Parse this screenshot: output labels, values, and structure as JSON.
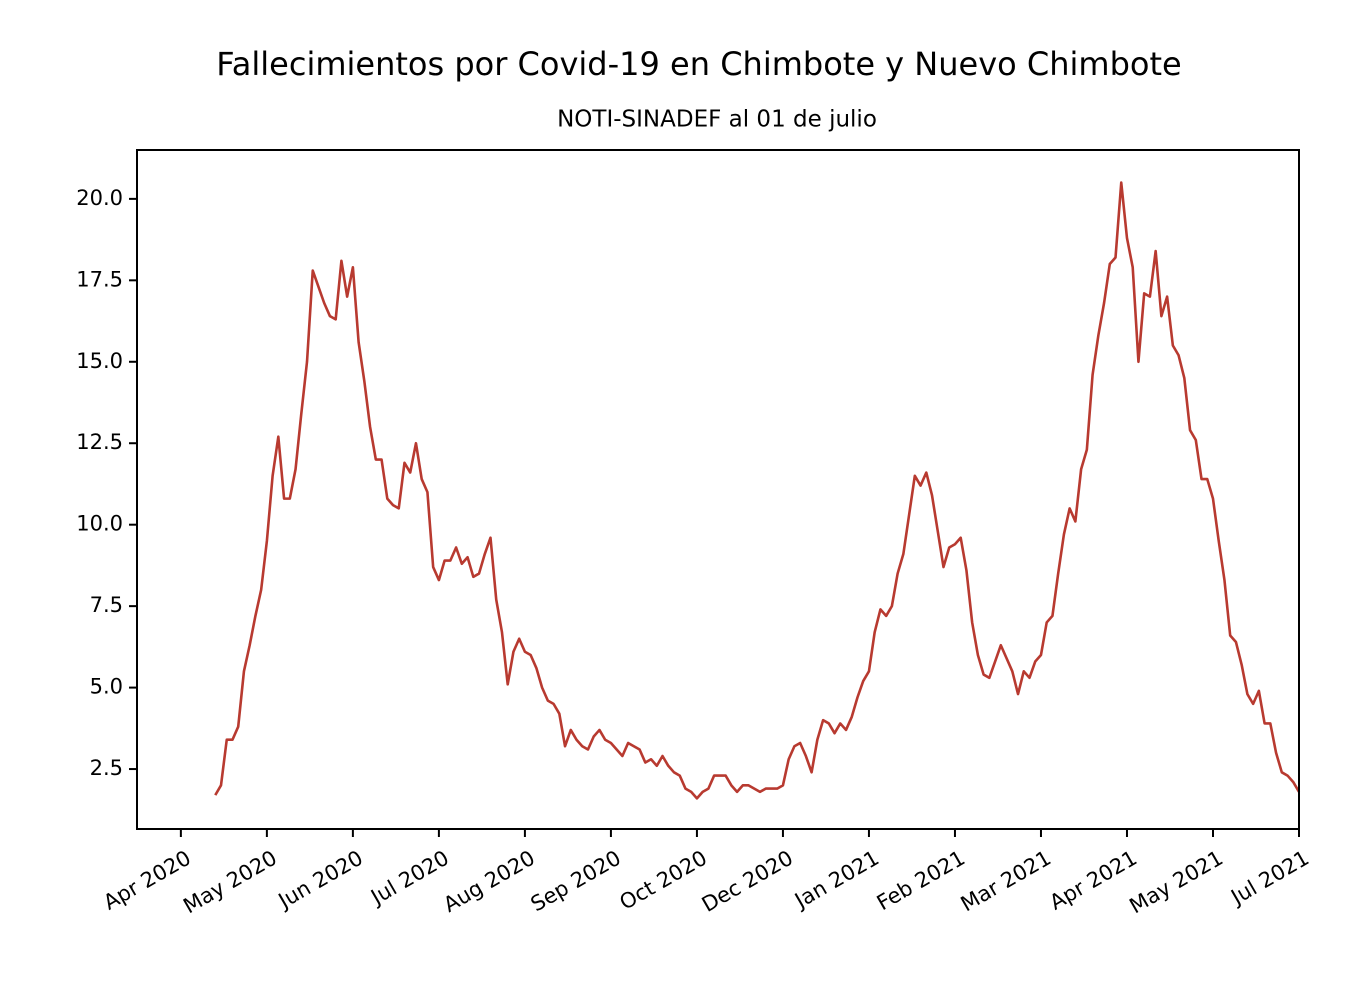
{
  "chart_data": {
    "type": "line",
    "title": "Fallecimientos por Covid-19 en Chimbote y Nuevo Chimbote",
    "subtitle": "NOTI-SINADEF al 01 de julio",
    "xlim": [
      -15.3,
      390
    ],
    "xticks": [
      {
        "value": 0,
        "label": "Apr 2020"
      },
      {
        "value": 30,
        "label": "May 2020"
      },
      {
        "value": 60,
        "label": "Jun 2020"
      },
      {
        "value": 90,
        "label": "Jul 2020"
      },
      {
        "value": 120,
        "label": "Aug 2020"
      },
      {
        "value": 150,
        "label": "Sep 2020"
      },
      {
        "value": 180,
        "label": "Oct 2020"
      },
      {
        "value": 210,
        "label": "Dec 2020"
      },
      {
        "value": 240,
        "label": "Jan 2021"
      },
      {
        "value": 270,
        "label": "Feb 2021"
      },
      {
        "value": 300,
        "label": "Mar 2021"
      },
      {
        "value": 330,
        "label": "Apr 2021"
      },
      {
        "value": 360,
        "label": "May 2021"
      },
      {
        "value": 390,
        "label": "Jul 2021"
      }
    ],
    "ylim": [
      0.66,
      21.5
    ],
    "yticks": [
      2.5,
      {
        "value": 5,
        "label": "5.0"
      },
      7.5,
      {
        "value": 10,
        "label": "10.0"
      },
      12.5,
      {
        "value": 15,
        "label": "15.0"
      },
      17.5,
      {
        "value": 20,
        "label": "20.0"
      }
    ],
    "x": [
      12,
      14,
      16,
      18,
      20,
      22,
      24,
      26,
      28,
      30,
      32,
      34,
      36,
      38,
      40,
      42,
      44,
      46,
      48,
      50,
      52,
      54,
      56,
      58,
      60,
      62,
      64,
      66,
      68,
      70,
      72,
      74,
      76,
      78,
      80,
      82,
      84,
      86,
      88,
      90,
      92,
      94,
      96,
      98,
      100,
      102,
      104,
      106,
      108,
      110,
      112,
      114,
      116,
      118,
      120,
      122,
      124,
      126,
      128,
      130,
      132,
      134,
      136,
      138,
      140,
      142,
      144,
      146,
      148,
      150,
      152,
      154,
      156,
      158,
      160,
      162,
      164,
      166,
      168,
      170,
      172,
      174,
      176,
      178,
      180,
      182,
      184,
      186,
      188,
      190,
      192,
      194,
      196,
      198,
      200,
      202,
      204,
      206,
      208,
      210,
      212,
      214,
      216,
      218,
      220,
      222,
      224,
      226,
      228,
      230,
      232,
      234,
      236,
      238,
      240,
      242,
      244,
      246,
      248,
      250,
      252,
      254,
      256,
      258,
      260,
      262,
      264,
      266,
      268,
      270,
      272,
      274,
      276,
      278,
      280,
      282,
      284,
      286,
      288,
      290,
      292,
      294,
      296,
      298,
      300,
      302,
      304,
      306,
      308,
      310,
      312,
      314,
      316,
      318,
      320,
      322,
      324,
      326,
      328,
      330,
      332,
      334,
      336,
      338,
      340,
      342,
      344,
      346,
      348,
      350,
      352,
      354,
      356,
      358,
      360,
      362,
      364,
      366,
      368,
      370,
      372,
      374,
      376,
      378,
      380,
      382,
      384,
      386,
      388,
      390
    ],
    "series": [
      {
        "color": "#b83a30",
        "values": [
          1.7,
          2.0,
          3.4,
          3.4,
          3.8,
          5.5,
          6.3,
          7.2,
          8.0,
          9.5,
          11.5,
          12.7,
          10.8,
          10.8,
          11.7,
          13.4,
          15.0,
          17.8,
          17.3,
          16.8,
          16.4,
          16.3,
          18.1,
          17.0,
          17.9,
          15.6,
          14.4,
          13.0,
          12.0,
          12.0,
          10.8,
          10.6,
          10.5,
          11.9,
          11.6,
          12.5,
          11.4,
          11.0,
          8.7,
          8.3,
          8.9,
          8.9,
          9.3,
          8.8,
          9.0,
          8.4,
          8.5,
          9.1,
          9.6,
          7.7,
          6.7,
          5.1,
          6.1,
          6.5,
          6.1,
          6.0,
          5.6,
          5.0,
          4.6,
          4.5,
          4.2,
          3.2,
          3.7,
          3.4,
          3.2,
          3.1,
          3.5,
          3.7,
          3.4,
          3.3,
          3.1,
          2.9,
          3.3,
          3.2,
          3.1,
          2.7,
          2.8,
          2.6,
          2.9,
          2.6,
          2.4,
          2.3,
          1.9,
          1.8,
          1.6,
          1.8,
          1.9,
          2.3,
          2.3,
          2.3,
          2.0,
          1.8,
          2.0,
          2.0,
          1.9,
          1.8,
          1.9,
          1.9,
          1.9,
          2.0,
          2.8,
          3.2,
          3.3,
          2.9,
          2.4,
          3.4,
          4.0,
          3.9,
          3.6,
          3.9,
          3.7,
          4.1,
          4.7,
          5.2,
          5.5,
          6.7,
          7.4,
          7.2,
          7.5,
          8.5,
          9.1,
          10.3,
          11.5,
          11.2,
          11.6,
          10.9,
          9.8,
          8.7,
          9.3,
          9.4,
          9.6,
          8.6,
          7.0,
          6.0,
          5.4,
          5.3,
          5.8,
          6.3,
          5.9,
          5.5,
          4.8,
          5.5,
          5.3,
          5.8,
          6.0,
          7.0,
          7.2,
          8.5,
          9.7,
          10.5,
          10.1,
          11.7,
          12.3,
          14.6,
          15.8,
          16.8,
          18.0,
          18.2,
          20.5,
          18.8,
          17.9,
          15.0,
          17.1,
          17.0,
          18.4,
          16.4,
          17.0,
          15.5,
          15.2,
          14.5,
          12.9,
          12.6,
          11.4,
          11.4,
          10.8,
          9.5,
          8.3,
          6.6,
          6.4,
          5.7,
          4.8,
          4.5,
          4.9,
          3.9,
          3.9,
          3.0,
          2.4,
          2.3,
          2.1,
          1.8
        ]
      }
    ]
  }
}
